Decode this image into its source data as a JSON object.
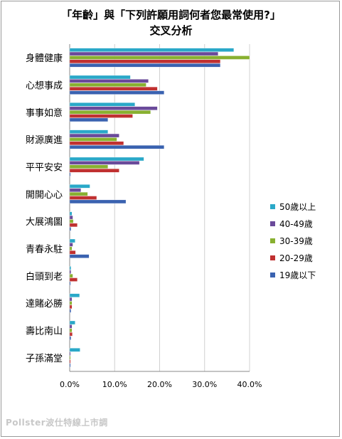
{
  "title_line1": "「年齡」與「下列許願用詞何者您最常使用?」",
  "title_line2": "交叉分析",
  "footer": "Pollster波仕特線上市調",
  "colors": {
    "50歲以上": "#2aa8c8",
    "40-49歲": "#6a4a9a",
    "30-39歲": "#88b030",
    "20-29歲": "#c03030",
    "19歲以下": "#3a62b0"
  },
  "chart_data": {
    "type": "bar",
    "orientation": "horizontal",
    "title": "「年齡」與「下列許願用詞何者您最常使用?」交叉分析",
    "categories": [
      "身體健康",
      "心想事成",
      "事事如意",
      "財源廣進",
      "平平安安",
      "開開心心",
      "大展鴻圖",
      "青春永駐",
      "白頭到老",
      "達賭必勝",
      "壽比南山",
      "子孫滿堂"
    ],
    "series": [
      {
        "name": "50歲以上",
        "values": [
          36.5,
          13.5,
          14.5,
          8.5,
          16.5,
          4.5,
          0.5,
          1.2,
          0.3,
          2.2,
          1.2,
          2.3
        ]
      },
      {
        "name": "40-49歲",
        "values": [
          33.0,
          17.5,
          19.5,
          11.0,
          15.5,
          2.5,
          0.7,
          0.7,
          0.3,
          0.5,
          0.5,
          0.2
        ]
      },
      {
        "name": "30-39歲",
        "values": [
          40.0,
          17.0,
          18.0,
          10.5,
          8.5,
          4.0,
          0.8,
          0.5,
          0.7,
          0.5,
          0.5,
          0.2
        ]
      },
      {
        "name": "20-29歲",
        "values": [
          33.5,
          19.5,
          14.0,
          12.0,
          11.0,
          6.0,
          1.7,
          1.3,
          1.7,
          0.5,
          0.6,
          0.2
        ]
      },
      {
        "name": "19歲以下",
        "values": [
          33.5,
          21.0,
          8.5,
          21.0,
          0.0,
          12.5,
          0.3,
          4.3,
          0.2,
          0.3,
          0.3,
          0.2
        ]
      }
    ],
    "xlim": [
      0,
      40
    ],
    "x_ticks": [
      "0.0%",
      "10.0%",
      "20.0%",
      "30.0%",
      "40.0%"
    ],
    "grid": true,
    "legend_position": "right"
  }
}
